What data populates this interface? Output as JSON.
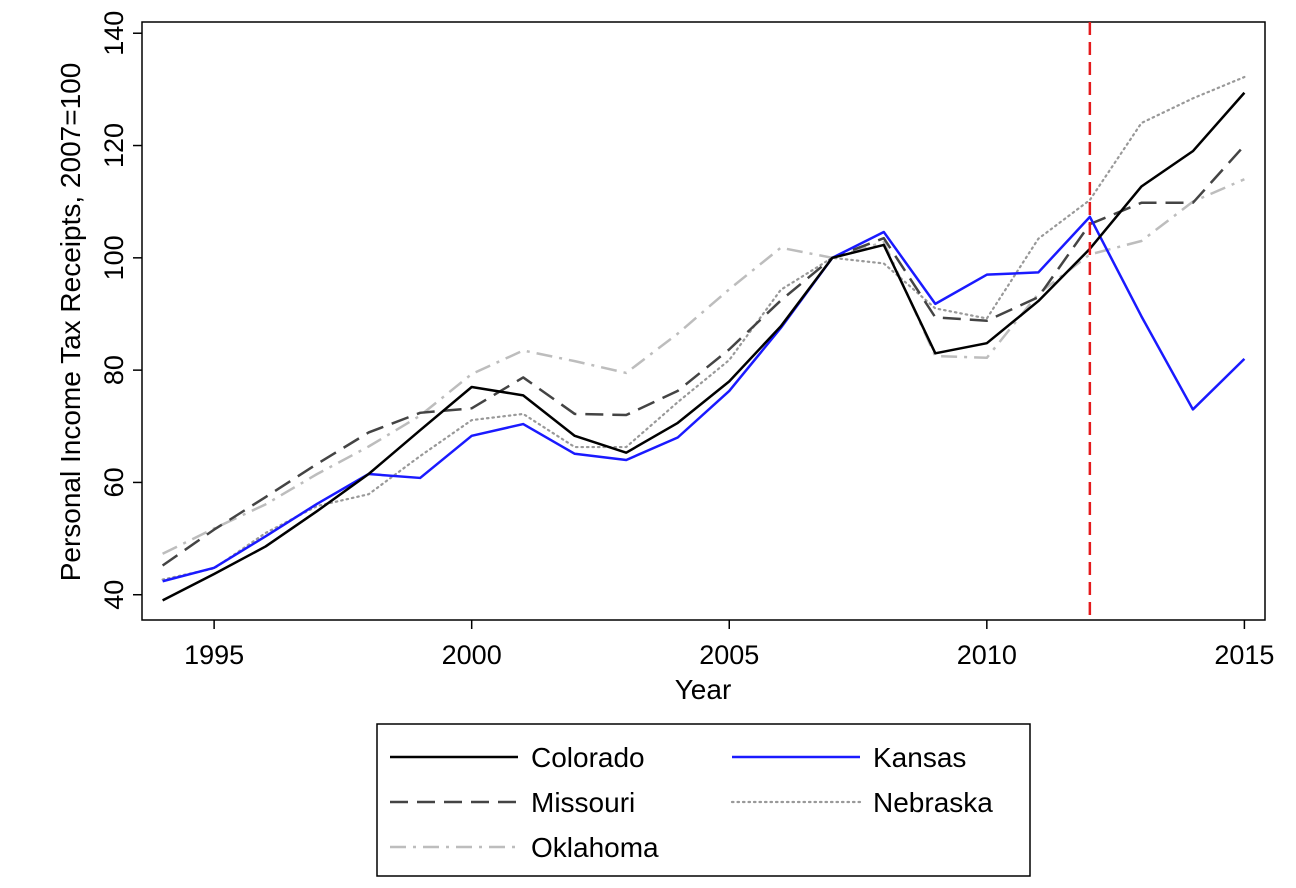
{
  "chart_data": {
    "type": "line",
    "title": "",
    "xlabel": "Year",
    "ylabel": "Personal Income Tax Receipts, 2007=100",
    "xlim": [
      1993.6,
      2015.4
    ],
    "ylim": [
      35.5,
      142
    ],
    "x_ticks": [
      1995,
      2000,
      2005,
      2010,
      2015
    ],
    "x_tick_labels": [
      "1995",
      "2000",
      "2005",
      "2010",
      "2015"
    ],
    "y_ticks": [
      40,
      60,
      80,
      100,
      120,
      140
    ],
    "y_tick_labels": [
      "40",
      "60",
      "80",
      "100",
      "120",
      "140"
    ],
    "grid": false,
    "reference_line": {
      "x": 2012,
      "color": "#e41a1c",
      "style": "dashed"
    },
    "x": [
      1994,
      1995,
      1996,
      1997,
      1998,
      1999,
      2000,
      2001,
      2002,
      2003,
      2004,
      2005,
      2006,
      2007,
      2008,
      2009,
      2010,
      2011,
      2012,
      2013,
      2014,
      2015
    ],
    "series": [
      {
        "name": "Colorado",
        "color": "#000000",
        "dash": "solid",
        "values": [
          39,
          43.7,
          48.6,
          54.9,
          61.5,
          69.3,
          77,
          75.5,
          68.3,
          65.3,
          70.6,
          78,
          87.8,
          100,
          102.3,
          83,
          84.8,
          92.3,
          101.6,
          112.7,
          119,
          129.4
        ]
      },
      {
        "name": "Kansas",
        "color": "#1a1aff",
        "dash": "solid",
        "values": [
          42.4,
          44.8,
          50.4,
          56.2,
          61.5,
          60.8,
          68.3,
          70.4,
          65.1,
          64,
          68,
          76.3,
          87.5,
          100,
          104.6,
          91.8,
          97,
          97.4,
          107.3,
          89.6,
          73,
          82
        ]
      },
      {
        "name": "Missouri",
        "color": "#444444",
        "dash": "long-dash",
        "values": [
          45.2,
          51.6,
          57.4,
          63.3,
          68.9,
          72.4,
          73.2,
          78.7,
          72.2,
          72,
          76.3,
          83.7,
          92.4,
          100,
          103.5,
          89.4,
          88.8,
          93,
          106,
          109.8,
          109.8,
          120
        ]
      },
      {
        "name": "Nebraska",
        "color": "#999999",
        "dash": "dotted",
        "values": [
          42.7,
          44.7,
          51,
          55.8,
          57.9,
          64.7,
          71.1,
          72.2,
          66.3,
          66.3,
          74.3,
          81.8,
          94.3,
          100,
          99,
          91,
          89.2,
          103.4,
          110.3,
          124,
          128.4,
          132.2
        ]
      },
      {
        "name": "Oklahoma",
        "color": "#bdbdbd",
        "dash": "dash-dot",
        "values": [
          47.3,
          51.8,
          56.1,
          61.5,
          66.4,
          71.9,
          79.3,
          83.5,
          81.6,
          79.5,
          86.5,
          94.4,
          101.8,
          100,
          102.8,
          82.5,
          82.2,
          93.6,
          100.6,
          103,
          110,
          114
        ]
      }
    ]
  },
  "legend": {
    "placement": "bottom-center",
    "entries": [
      {
        "label": "Colorado",
        "series": "Colorado"
      },
      {
        "label": "Kansas",
        "series": "Kansas"
      },
      {
        "label": "Missouri",
        "series": "Missouri"
      },
      {
        "label": "Nebraska",
        "series": "Nebraska"
      },
      {
        "label": "Oklahoma",
        "series": "Oklahoma"
      }
    ]
  }
}
